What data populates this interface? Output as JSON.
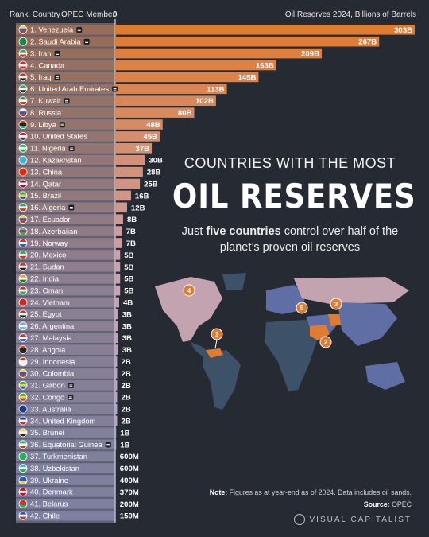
{
  "header": {
    "rank_country": "Rank. Country",
    "opec_member": "OPEC Member",
    "axis_zero": "0",
    "reserves_label": "Oil Reserves 2024, Billions of Barrels"
  },
  "title": {
    "top": "COUNTRIES WITH THE MOST",
    "main": "OIL RESERVES",
    "sub_before": "Just ",
    "sub_bold": "five countries",
    "sub_after": " control over half of the planet’s proven oil reserves"
  },
  "note": {
    "label": "Note:",
    "text": " Figures as at year-end as of 2024. Data includes oil sands."
  },
  "source": {
    "label": "Source:",
    "text": " OPEC"
  },
  "brand": "VISUAL CAPITALIST",
  "map_markers": [
    "1",
    "2",
    "3",
    "4",
    "5"
  ],
  "colors": {
    "background": "#262a33",
    "bar_top": "#e07b32",
    "bar_mid": "#c9a3b3",
    "bar_low": "#a3a7d7",
    "opec_col": "#5c6072"
  },
  "chart_data": {
    "type": "bar",
    "orientation": "horizontal",
    "title": "Oil Reserves 2024, Billions of Barrels",
    "categories": [
      "1. Venezuela",
      "2. Saudi Arabia",
      "3. Iran",
      "4. Canada",
      "5. Iraq",
      "6. United Arab Emirates",
      "7. Kuwait",
      "8. Russia",
      "9. Libya",
      "10. United States",
      "11. Nigeria",
      "12. Kazakhstan",
      "13. China",
      "14. Qatar",
      "15. Brazil",
      "16. Algeria",
      "17. Ecuador",
      "18. Azerbaijan",
      "19. Norway",
      "20. Mexico",
      "21. Sudan",
      "22. India",
      "23. Oman",
      "24. Vietnam",
      "25. Egypt",
      "26. Argentina",
      "27. Malaysia",
      "28. Angola",
      "29. Indonesia",
      "30. Colombia",
      "31. Gabon",
      "32. Congo",
      "33. Australia",
      "34. United Kingdom",
      "35. Brunei",
      "36. Equatorial Guinea",
      "37. Turkmenistan",
      "38. Uzbekistan",
      "39. Ukraine",
      "40. Denmark",
      "41. Belarus",
      "42. Chile"
    ],
    "values": [
      303,
      267,
      209,
      163,
      145,
      113,
      102,
      80,
      48,
      45,
      37,
      30,
      28,
      25,
      16,
      12,
      8,
      7,
      7,
      5,
      5,
      5,
      5,
      4,
      3,
      3,
      3,
      3,
      2,
      2,
      2,
      2,
      2,
      2,
      1,
      1,
      0.6,
      0.6,
      0.4,
      0.37,
      0.2,
      0.15
    ],
    "labels": [
      "303B",
      "267B",
      "209B",
      "163B",
      "145B",
      "113B",
      "102B",
      "80B",
      "48B",
      "45B",
      "37B",
      "30B",
      "28B",
      "25B",
      "16B",
      "12B",
      "8B",
      "7B",
      "7B",
      "5B",
      "5B",
      "5B",
      "5B",
      "4B",
      "3B",
      "3B",
      "3B",
      "3B",
      "2B",
      "2B",
      "2B",
      "2B",
      "2B",
      "2B",
      "1B",
      "1B",
      "600M",
      "600M",
      "400M",
      "370M",
      "200M",
      "150M"
    ],
    "opec_member": [
      true,
      true,
      true,
      false,
      true,
      true,
      true,
      false,
      true,
      false,
      true,
      false,
      false,
      false,
      false,
      true,
      false,
      false,
      false,
      false,
      false,
      false,
      false,
      false,
      false,
      false,
      false,
      false,
      false,
      false,
      true,
      true,
      false,
      false,
      false,
      true,
      false,
      false,
      false,
      false,
      false,
      false
    ],
    "flags": [
      [
        "#f4d03f",
        "#2e5cb8",
        "#c0392b"
      ],
      [
        "#1e8449",
        "#1e8449",
        "#1e8449"
      ],
      [
        "#27ae60",
        "#f2f2f2",
        "#c0392b"
      ],
      [
        "#d32f2f",
        "#f2f2f2",
        "#d32f2f"
      ],
      [
        "#c0392b",
        "#f2f2f2",
        "#222222"
      ],
      [
        "#27ae60",
        "#f2f2f2",
        "#222222"
      ],
      [
        "#1e8449",
        "#f2f2f2",
        "#c0392b"
      ],
      [
        "#f2f2f2",
        "#2e5cb8",
        "#c0392b"
      ],
      [
        "#c0392b",
        "#222222",
        "#27ae60"
      ],
      [
        "#b22234",
        "#f2f2f2",
        "#3c3b6e"
      ],
      [
        "#27ae60",
        "#f2f2f2",
        "#27ae60"
      ],
      [
        "#3fb6d6",
        "#3fb6d6",
        "#3fb6d6"
      ],
      [
        "#de2910",
        "#de2910",
        "#de2910"
      ],
      [
        "#8a1538",
        "#f2f2f2",
        "#8a1538"
      ],
      [
        "#27ae60",
        "#f4d03f",
        "#2e5cb8"
      ],
      [
        "#27ae60",
        "#f2f2f2",
        "#c0392b"
      ],
      [
        "#f4d03f",
        "#2e5cb8",
        "#c0392b"
      ],
      [
        "#3fb6d6",
        "#c0392b",
        "#27ae60"
      ],
      [
        "#c0392b",
        "#f2f2f2",
        "#2e5cb8"
      ],
      [
        "#27ae60",
        "#f2f2f2",
        "#c0392b"
      ],
      [
        "#c0392b",
        "#f2f2f2",
        "#222222"
      ],
      [
        "#ff9933",
        "#f2f2f2",
        "#138808"
      ],
      [
        "#c0392b",
        "#f2f2f2",
        "#27ae60"
      ],
      [
        "#da251d",
        "#da251d",
        "#da251d"
      ],
      [
        "#c0392b",
        "#f2f2f2",
        "#222222"
      ],
      [
        "#74acdf",
        "#f2f2f2",
        "#74acdf"
      ],
      [
        "#c0392b",
        "#f2f2f2",
        "#2e5cb8"
      ],
      [
        "#c0392b",
        "#222222",
        "#222222"
      ],
      [
        "#c0392b",
        "#f2f2f2",
        "#f2f2f2"
      ],
      [
        "#f4d03f",
        "#2e5cb8",
        "#c0392b"
      ],
      [
        "#27ae60",
        "#f4d03f",
        "#2e5cb8"
      ],
      [
        "#27ae60",
        "#f4d03f",
        "#c0392b"
      ],
      [
        "#1f3b8a",
        "#1f3b8a",
        "#1f3b8a"
      ],
      [
        "#1f3b8a",
        "#f2f2f2",
        "#c0392b"
      ],
      [
        "#f4d03f",
        "#f2f2f2",
        "#222222"
      ],
      [
        "#27ae60",
        "#f2f2f2",
        "#c0392b"
      ],
      [
        "#27ae60",
        "#27ae60",
        "#27ae60"
      ],
      [
        "#3fb6d6",
        "#f2f2f2",
        "#27ae60"
      ],
      [
        "#2e5cb8",
        "#2e5cb8",
        "#f4d03f"
      ],
      [
        "#c8102e",
        "#f2f2f2",
        "#c8102e"
      ],
      [
        "#c0392b",
        "#c0392b",
        "#27ae60"
      ],
      [
        "#2e5cb8",
        "#f2f2f2",
        "#c0392b"
      ]
    ]
  }
}
